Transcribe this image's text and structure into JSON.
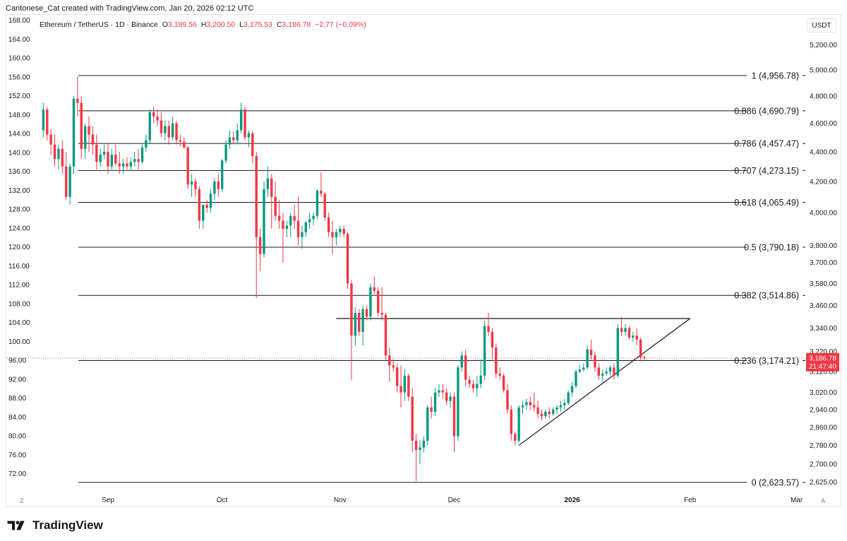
{
  "header": {
    "text": "Cantonese_Cat created with TradingView.com, Jan 20, 2026 02:12 UTC"
  },
  "legend": {
    "symbol": "Ethereum / TetherUS · 1D · Binance",
    "o_label": "O",
    "o": "3,189.56",
    "h_label": "H",
    "h": "3,200.50",
    "l_label": "L",
    "l": "3,175.53",
    "c_label": "C",
    "c": "3,186.78",
    "change": "−2.77 (−0.09%)"
  },
  "currency": "USDT",
  "brand": "TradingView",
  "corners": {
    "left": "Z",
    "right": "A"
  },
  "price_tag": {
    "value": "3,186.78",
    "timer": "21:47:40"
  },
  "colors": {
    "up": "#089981",
    "down": "#f23645",
    "line": "#131722",
    "grid_text": "#131722"
  },
  "chart_data": {
    "type": "candlestick",
    "title": "Ethereum / TetherUS · 1D · Binance",
    "left_axis_ticks": [
      "168.00",
      "164.00",
      "160.00",
      "156.00",
      "152.00",
      "148.00",
      "144.00",
      "140.00",
      "136.00",
      "132.00",
      "128.00",
      "124.00",
      "120.00",
      "116.00",
      "112.00",
      "108.00",
      "104.00",
      "100.00",
      "96.00",
      "92.00",
      "88.00",
      "84.00",
      "80.00",
      "76.00",
      "72.00"
    ],
    "right_axis_ticks": [
      "5,200.00",
      "5,000.00",
      "4,800.00",
      "4,600.00",
      "4,400.00",
      "4,200.00",
      "4,000.00",
      "3,800.00",
      "3,700.00",
      "3,580.00",
      "3,460.00",
      "3,340.00",
      "3,220.00",
      "3,120.00",
      "3,020.00",
      "2,940.00",
      "2,860.00",
      "2,780.00",
      "2,700.00",
      "2,625.00"
    ],
    "x_ticks": [
      "Sep",
      "Oct",
      "Nov",
      "Dec",
      "2026",
      "Feb",
      "Mar"
    ],
    "y_scale": "log",
    "fib_levels": [
      {
        "label": "1 (4,956.78)",
        "price": 4956.78
      },
      {
        "label": "0.886 (4,690.79)",
        "price": 4690.79
      },
      {
        "label": "0.786 (4,457.47)",
        "price": 4457.47
      },
      {
        "label": "0.707 (4,273.15)",
        "price": 4273.15
      },
      {
        "label": "0.618 (4,065.49)",
        "price": 4065.49
      },
      {
        "label": "0.5 (3,790.18)",
        "price": 3790.18
      },
      {
        "label": "0.382 (3,514.86)",
        "price": 3514.86
      },
      {
        "label": "0.236 (3,174.21)",
        "price": 3174.21
      },
      {
        "label": "0 (2,623.57)",
        "price": 2623.57
      }
    ],
    "last_price": 3186.78,
    "resistance_price": 3390,
    "trendline": {
      "start": [
        "2025-12-18",
        2780
      ],
      "end": [
        "2026-02-01",
        3390
      ]
    },
    "candles": [
      [
        "2025-08-15",
        4550,
        4750,
        4500,
        4700
      ],
      [
        "2025-08-16",
        4700,
        4720,
        4480,
        4520
      ],
      [
        "2025-08-17",
        4520,
        4560,
        4380,
        4450
      ],
      [
        "2025-08-18",
        4450,
        4520,
        4300,
        4350
      ],
      [
        "2025-08-19",
        4350,
        4450,
        4280,
        4420
      ],
      [
        "2025-08-20",
        4420,
        4480,
        4250,
        4300
      ],
      [
        "2025-08-21",
        4300,
        4400,
        4080,
        4100
      ],
      [
        "2025-08-22",
        4100,
        4320,
        4050,
        4300
      ],
      [
        "2025-08-23",
        4300,
        4800,
        4250,
        4780
      ],
      [
        "2025-08-24",
        4780,
        4950,
        4650,
        4750
      ],
      [
        "2025-08-25",
        4750,
        4800,
        4350,
        4420
      ],
      [
        "2025-08-26",
        4420,
        4600,
        4350,
        4580
      ],
      [
        "2025-08-27",
        4580,
        4650,
        4400,
        4520
      ],
      [
        "2025-08-28",
        4520,
        4580,
        4380,
        4450
      ],
      [
        "2025-08-29",
        4450,
        4520,
        4280,
        4330
      ],
      [
        "2025-08-30",
        4330,
        4420,
        4300,
        4380
      ],
      [
        "2025-08-31",
        4380,
        4450,
        4350,
        4400
      ],
      [
        "2025-09-01",
        4400,
        4460,
        4250,
        4300
      ],
      [
        "2025-09-02",
        4300,
        4420,
        4280,
        4380
      ],
      [
        "2025-09-03",
        4380,
        4450,
        4300,
        4320
      ],
      [
        "2025-09-04",
        4320,
        4400,
        4250,
        4300
      ],
      [
        "2025-09-05",
        4300,
        4350,
        4250,
        4320
      ],
      [
        "2025-09-06",
        4320,
        4360,
        4280,
        4300
      ],
      [
        "2025-09-07",
        4300,
        4360,
        4270,
        4330
      ],
      [
        "2025-09-08",
        4330,
        4400,
        4300,
        4350
      ],
      [
        "2025-09-09",
        4350,
        4420,
        4280,
        4330
      ],
      [
        "2025-09-10",
        4330,
        4450,
        4320,
        4430
      ],
      [
        "2025-09-11",
        4430,
        4520,
        4400,
        4480
      ],
      [
        "2025-09-12",
        4480,
        4700,
        4460,
        4680
      ],
      [
        "2025-09-13",
        4680,
        4720,
        4600,
        4650
      ],
      [
        "2025-09-14",
        4650,
        4700,
        4580,
        4620
      ],
      [
        "2025-09-15",
        4620,
        4680,
        4500,
        4530
      ],
      [
        "2025-09-16",
        4530,
        4620,
        4480,
        4580
      ],
      [
        "2025-09-17",
        4580,
        4620,
        4450,
        4500
      ],
      [
        "2025-09-18",
        4500,
        4650,
        4480,
        4600
      ],
      [
        "2025-09-19",
        4600,
        4620,
        4450,
        4480
      ],
      [
        "2025-09-20",
        4480,
        4520,
        4440,
        4470
      ],
      [
        "2025-09-21",
        4470,
        4500,
        4420,
        4430
      ],
      [
        "2025-09-22",
        4430,
        4440,
        4150,
        4180
      ],
      [
        "2025-09-23",
        4180,
        4250,
        4100,
        4200
      ],
      [
        "2025-09-24",
        4200,
        4220,
        4100,
        4150
      ],
      [
        "2025-09-25",
        4150,
        4170,
        3900,
        3950
      ],
      [
        "2025-09-26",
        3950,
        4050,
        3900,
        4050
      ],
      [
        "2025-09-27",
        4050,
        4080,
        4000,
        4030
      ],
      [
        "2025-09-28",
        4030,
        4150,
        4000,
        4120
      ],
      [
        "2025-09-29",
        4120,
        4220,
        4080,
        4200
      ],
      [
        "2025-09-30",
        4200,
        4250,
        4100,
        4150
      ],
      [
        "2025-10-01",
        4150,
        4350,
        4130,
        4340
      ],
      [
        "2025-10-02",
        4340,
        4480,
        4320,
        4450
      ],
      [
        "2025-10-03",
        4450,
        4550,
        4420,
        4500
      ],
      [
        "2025-10-04",
        4500,
        4540,
        4450,
        4480
      ],
      [
        "2025-10-05",
        4480,
        4600,
        4450,
        4550
      ],
      [
        "2025-10-06",
        4550,
        4750,
        4530,
        4700
      ],
      [
        "2025-10-07",
        4700,
        4720,
        4480,
        4500
      ],
      [
        "2025-10-08",
        4500,
        4550,
        4430,
        4530
      ],
      [
        "2025-10-09",
        4530,
        4540,
        4320,
        4370
      ],
      [
        "2025-10-10",
        4370,
        4400,
        3500,
        3850
      ],
      [
        "2025-10-11",
        3850,
        3900,
        3650,
        3750
      ],
      [
        "2025-10-12",
        3750,
        4200,
        3730,
        4150
      ],
      [
        "2025-10-13",
        4150,
        4300,
        4100,
        4220
      ],
      [
        "2025-10-14",
        4220,
        4250,
        3900,
        4100
      ],
      [
        "2025-10-15",
        4100,
        4200,
        3950,
        3980
      ],
      [
        "2025-10-16",
        3980,
        4080,
        3900,
        3950
      ],
      [
        "2025-10-17",
        3950,
        4000,
        3700,
        3900
      ],
      [
        "2025-10-18",
        3900,
        3950,
        3850,
        3920
      ],
      [
        "2025-10-19",
        3920,
        4000,
        3850,
        3980
      ],
      [
        "2025-10-20",
        3980,
        4050,
        3900,
        3950
      ],
      [
        "2025-10-21",
        3950,
        4100,
        3800,
        3850
      ],
      [
        "2025-10-22",
        3850,
        3920,
        3780,
        3880
      ],
      [
        "2025-10-23",
        3880,
        3950,
        3850,
        3940
      ],
      [
        "2025-10-24",
        3940,
        4000,
        3900,
        3960
      ],
      [
        "2025-10-25",
        3960,
        4000,
        3920,
        3980
      ],
      [
        "2025-10-26",
        3980,
        4150,
        3960,
        4140
      ],
      [
        "2025-10-27",
        4140,
        4260,
        4100,
        4120
      ],
      [
        "2025-10-28",
        4120,
        4130,
        3950,
        3970
      ],
      [
        "2025-10-29",
        3970,
        4000,
        3850,
        3880
      ],
      [
        "2025-10-30",
        3880,
        3950,
        3750,
        3850
      ],
      [
        "2025-10-31",
        3850,
        3900,
        3800,
        3880
      ],
      [
        "2025-11-01",
        3880,
        3920,
        3850,
        3900
      ],
      [
        "2025-11-02",
        3900,
        3920,
        3850,
        3870
      ],
      [
        "2025-11-03",
        3870,
        3880,
        3550,
        3580
      ],
      [
        "2025-11-04",
        3580,
        3600,
        3080,
        3300
      ],
      [
        "2025-11-05",
        3300,
        3450,
        3250,
        3420
      ],
      [
        "2025-11-06",
        3420,
        3440,
        3300,
        3320
      ],
      [
        "2025-11-07",
        3320,
        3460,
        3250,
        3440
      ],
      [
        "2025-11-08",
        3440,
        3460,
        3380,
        3400
      ],
      [
        "2025-11-09",
        3400,
        3580,
        3380,
        3560
      ],
      [
        "2025-11-10",
        3560,
        3620,
        3520,
        3540
      ],
      [
        "2025-11-11",
        3540,
        3560,
        3400,
        3420
      ],
      [
        "2025-11-12",
        3420,
        3560,
        3380,
        3410
      ],
      [
        "2025-11-13",
        3410,
        3420,
        3180,
        3200
      ],
      [
        "2025-11-14",
        3200,
        3240,
        3070,
        3150
      ],
      [
        "2025-11-15",
        3150,
        3180,
        3120,
        3140
      ],
      [
        "2025-11-16",
        3140,
        3160,
        3020,
        3050
      ],
      [
        "2025-11-17",
        3050,
        3150,
        2950,
        3020
      ],
      [
        "2025-11-18",
        3020,
        3130,
        2980,
        3100
      ],
      [
        "2025-11-19",
        3100,
        3110,
        2980,
        3000
      ],
      [
        "2025-11-20",
        3000,
        3040,
        2750,
        2800
      ],
      [
        "2025-11-21",
        2800,
        2830,
        2630,
        2760
      ],
      [
        "2025-11-22",
        2760,
        2800,
        2700,
        2770
      ],
      [
        "2025-11-23",
        2770,
        2820,
        2750,
        2800
      ],
      [
        "2025-11-24",
        2800,
        2960,
        2780,
        2950
      ],
      [
        "2025-11-25",
        2950,
        3000,
        2900,
        2930
      ],
      [
        "2025-11-26",
        2930,
        3040,
        2910,
        3020
      ],
      [
        "2025-11-27",
        3020,
        3060,
        3000,
        3030
      ],
      [
        "2025-11-28",
        3030,
        3060,
        2990,
        3020
      ],
      [
        "2025-11-29",
        3020,
        3040,
        2960,
        2980
      ],
      [
        "2025-11-30",
        2980,
        3020,
        2950,
        3000
      ],
      [
        "2025-12-01",
        3000,
        3020,
        2750,
        2820
      ],
      [
        "2025-12-02",
        2820,
        3150,
        2800,
        3140
      ],
      [
        "2025-12-03",
        3140,
        3220,
        3120,
        3200
      ],
      [
        "2025-12-04",
        3200,
        3230,
        3050,
        3080
      ],
      [
        "2025-12-05",
        3080,
        3100,
        3040,
        3060
      ],
      [
        "2025-12-06",
        3060,
        3080,
        3020,
        3040
      ],
      [
        "2025-12-07",
        3040,
        3100,
        3000,
        3060
      ],
      [
        "2025-12-08",
        3060,
        3180,
        3040,
        3100
      ],
      [
        "2025-12-09",
        3100,
        3380,
        3080,
        3350
      ],
      [
        "2025-12-10",
        3350,
        3420,
        3300,
        3320
      ],
      [
        "2025-12-11",
        3320,
        3340,
        3180,
        3240
      ],
      [
        "2025-12-12",
        3240,
        3260,
        3090,
        3110
      ],
      [
        "2025-12-13",
        3110,
        3140,
        3080,
        3100
      ],
      [
        "2025-12-14",
        3100,
        3110,
        3020,
        3030
      ],
      [
        "2025-12-15",
        3030,
        3060,
        2920,
        2940
      ],
      [
        "2025-12-16",
        2940,
        2960,
        2800,
        2830
      ],
      [
        "2025-12-17",
        2830,
        2840,
        2780,
        2800
      ],
      [
        "2025-12-18",
        2800,
        2960,
        2790,
        2950
      ],
      [
        "2025-12-19",
        2950,
        2980,
        2920,
        2960
      ],
      [
        "2025-12-20",
        2960,
        2990,
        2940,
        2975
      ],
      [
        "2025-12-21",
        2975,
        3000,
        2940,
        2960
      ],
      [
        "2025-12-22",
        2960,
        3020,
        2930,
        2950
      ],
      [
        "2025-12-23",
        2950,
        2980,
        2900,
        2920
      ],
      [
        "2025-12-24",
        2920,
        2940,
        2890,
        2910
      ],
      [
        "2025-12-25",
        2910,
        2940,
        2900,
        2930
      ],
      [
        "2025-12-26",
        2930,
        2950,
        2900,
        2920
      ],
      [
        "2025-12-27",
        2920,
        2950,
        2910,
        2940
      ],
      [
        "2025-12-28",
        2940,
        2960,
        2920,
        2950
      ],
      [
        "2025-12-29",
        2950,
        2980,
        2930,
        2960
      ],
      [
        "2025-12-30",
        2960,
        2990,
        2940,
        2970
      ],
      [
        "2025-12-31",
        2970,
        3030,
        2960,
        3020
      ],
      [
        "2026-01-01",
        3020,
        3070,
        3000,
        3050
      ],
      [
        "2026-01-02",
        3050,
        3130,
        3040,
        3120
      ],
      [
        "2026-01-03",
        3120,
        3150,
        3110,
        3130
      ],
      [
        "2026-01-04",
        3130,
        3160,
        3120,
        3140
      ],
      [
        "2026-01-05",
        3140,
        3250,
        3130,
        3230
      ],
      [
        "2026-01-06",
        3230,
        3280,
        3180,
        3200
      ],
      [
        "2026-01-07",
        3200,
        3220,
        3120,
        3140
      ],
      [
        "2026-01-08",
        3140,
        3160,
        3080,
        3100
      ],
      [
        "2026-01-09",
        3100,
        3130,
        3070,
        3110
      ],
      [
        "2026-01-10",
        3110,
        3140,
        3100,
        3120
      ],
      [
        "2026-01-11",
        3120,
        3150,
        3100,
        3140
      ],
      [
        "2026-01-12",
        3140,
        3160,
        3080,
        3100
      ],
      [
        "2026-01-13",
        3100,
        3360,
        3090,
        3340
      ],
      [
        "2026-01-14",
        3340,
        3400,
        3300,
        3320
      ],
      [
        "2026-01-15",
        3320,
        3360,
        3300,
        3340
      ],
      [
        "2026-01-16",
        3340,
        3350,
        3280,
        3290
      ],
      [
        "2026-01-17",
        3290,
        3320,
        3270,
        3300
      ],
      [
        "2026-01-18",
        3300,
        3340,
        3250,
        3280
      ],
      [
        "2026-01-19",
        3280,
        3290,
        3170,
        3190
      ],
      [
        "2026-01-20",
        3189.56,
        3200.5,
        3175.53,
        3186.78
      ]
    ]
  }
}
